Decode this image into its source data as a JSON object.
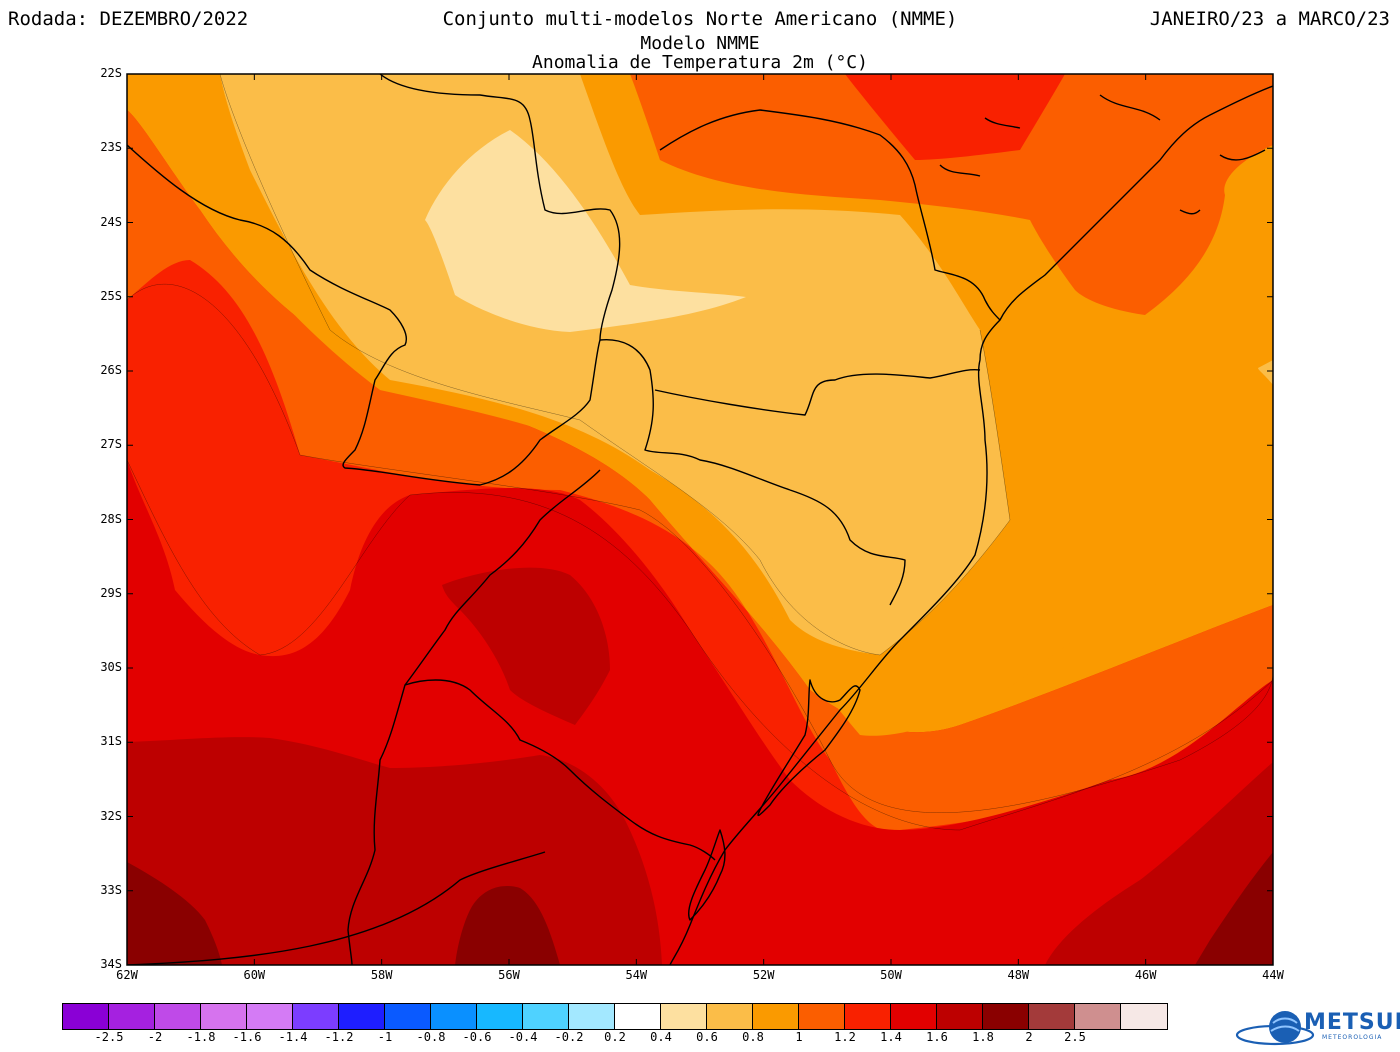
{
  "header": {
    "left": "Rodada: DEZEMBRO/2022",
    "center": "Conjunto multi-modelos Norte Americano (NMME)",
    "right": "JANEIRO/23 a MARCO/23",
    "subtitle1": "Modelo NMME",
    "subtitle2": "Anomalia de Temperatura 2m (°C)"
  },
  "map": {
    "lat_labels": [
      "22S",
      "23S",
      "24S",
      "25S",
      "26S",
      "27S",
      "28S",
      "29S",
      "30S",
      "31S",
      "32S",
      "33S",
      "34S"
    ],
    "lon_labels": [
      "62W",
      "60W",
      "58W",
      "56W",
      "54W",
      "52W",
      "50W",
      "48W",
      "46W",
      "44W"
    ],
    "extent": {
      "lon_min": -62,
      "lon_max": -44,
      "lat_min": -34,
      "lat_max": -22
    },
    "field_colors": {
      "c02_04": "#fde0a0",
      "c04_06": "#fbbd48",
      "c06_08": "#fa9a00",
      "c08_10": "#fb5e00",
      "c10_12": "#f92100",
      "c12_14": "#e20000",
      "c14_16": "#bd0000",
      "c16_18": "#8a0000"
    }
  },
  "colorbar": {
    "colors": [
      "#8a00d6",
      "#a521e0",
      "#bf4ae8",
      "#d673ee",
      "#d47bf5",
      "#7c3dff",
      "#1e1eff",
      "#0a5aff",
      "#0a90ff",
      "#17b8ff",
      "#4fd2ff",
      "#a3e8ff",
      "#ffffff",
      "#fde0a0",
      "#fbbd48",
      "#fa9a00",
      "#fb5e00",
      "#f92100",
      "#e20000",
      "#bd0000",
      "#8a0000",
      "#a33a3a",
      "#cf8f8f",
      "#f6e8e6"
    ],
    "labels": [
      "-2.5",
      "-2",
      "-1.8",
      "-1.6",
      "-1.4",
      "-1.2",
      "-1",
      "-0.8",
      "-0.6",
      "-0.4",
      "-0.2",
      "0.2",
      "0.4",
      "0.6",
      "0.8",
      "1",
      "1.2",
      "1.4",
      "1.6",
      "1.8",
      "2",
      "2.5"
    ]
  },
  "logo": {
    "text": "METSUL",
    "subtext": "METEOROLOGIA",
    "brand_color": "#1a5fb4"
  }
}
